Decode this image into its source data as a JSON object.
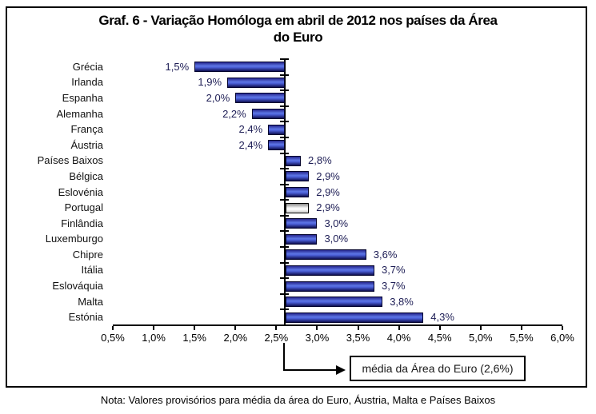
{
  "title": {
    "line1": "Graf. 6 - Variação Homóloga em abril de 2012 nos países da Área",
    "line2": "do Euro"
  },
  "annotation": {
    "label": "média da Área do Euro (2,6%)"
  },
  "note": "Nota: Valores provisórios para média da área do Euro, Áustria, Malta e Países Baixos",
  "chart_data": {
    "type": "bar",
    "orientation": "horizontal",
    "title": "Graf. 6 - Variação Homóloga em abril de 2012 nos países da Área do Euro",
    "categories": [
      "Grécia",
      "Irlanda",
      "Espanha",
      "Alemanha",
      "França",
      "Áustria",
      "Países Baixos",
      "Bélgica",
      "Eslovénia",
      "Portugal",
      "Finlândia",
      "Luxemburgo",
      "Chipre",
      "Itália",
      "Eslováquia",
      "Malta",
      "Estónia"
    ],
    "values": [
      1.5,
      1.9,
      2.0,
      2.2,
      2.4,
      2.4,
      2.8,
      2.9,
      2.9,
      2.9,
      3.0,
      3.0,
      3.6,
      3.7,
      3.7,
      3.8,
      4.3
    ],
    "value_labels": [
      "1,5%",
      "1,9%",
      "2,0%",
      "2,2%",
      "2,4%",
      "2,4%",
      "2,8%",
      "2,9%",
      "2,9%",
      "2,9%",
      "3,0%",
      "3,0%",
      "3,6%",
      "3,7%",
      "3,7%",
      "3,8%",
      "4,3%"
    ],
    "baseline": 2.6,
    "baseline_label": "média da Área do Euro (2,6%)",
    "highlight_category": "Portugal",
    "xlim": [
      0.5,
      6.0
    ],
    "x_ticks": [
      0.5,
      1.0,
      1.5,
      2.0,
      2.5,
      3.0,
      3.5,
      4.0,
      4.5,
      5.0,
      5.5,
      6.0
    ],
    "x_tick_labels": [
      "0,5%",
      "1,0%",
      "1,5%",
      "2,0%",
      "2,5%",
      "3,0%",
      "3,5%",
      "4,0%",
      "4,5%",
      "5,0%",
      "5,5%",
      "6,0%"
    ],
    "grid": false,
    "legend": false,
    "colors": {
      "bar_fill_mid": "#5d76e6",
      "bar_fill_dark": "#1a1a70",
      "bar_border": "#03032e",
      "highlight_fill": "#ffffff",
      "highlight_border": "#000000",
      "value_label_text": "#1d1d55",
      "axis": "#000000"
    }
  }
}
